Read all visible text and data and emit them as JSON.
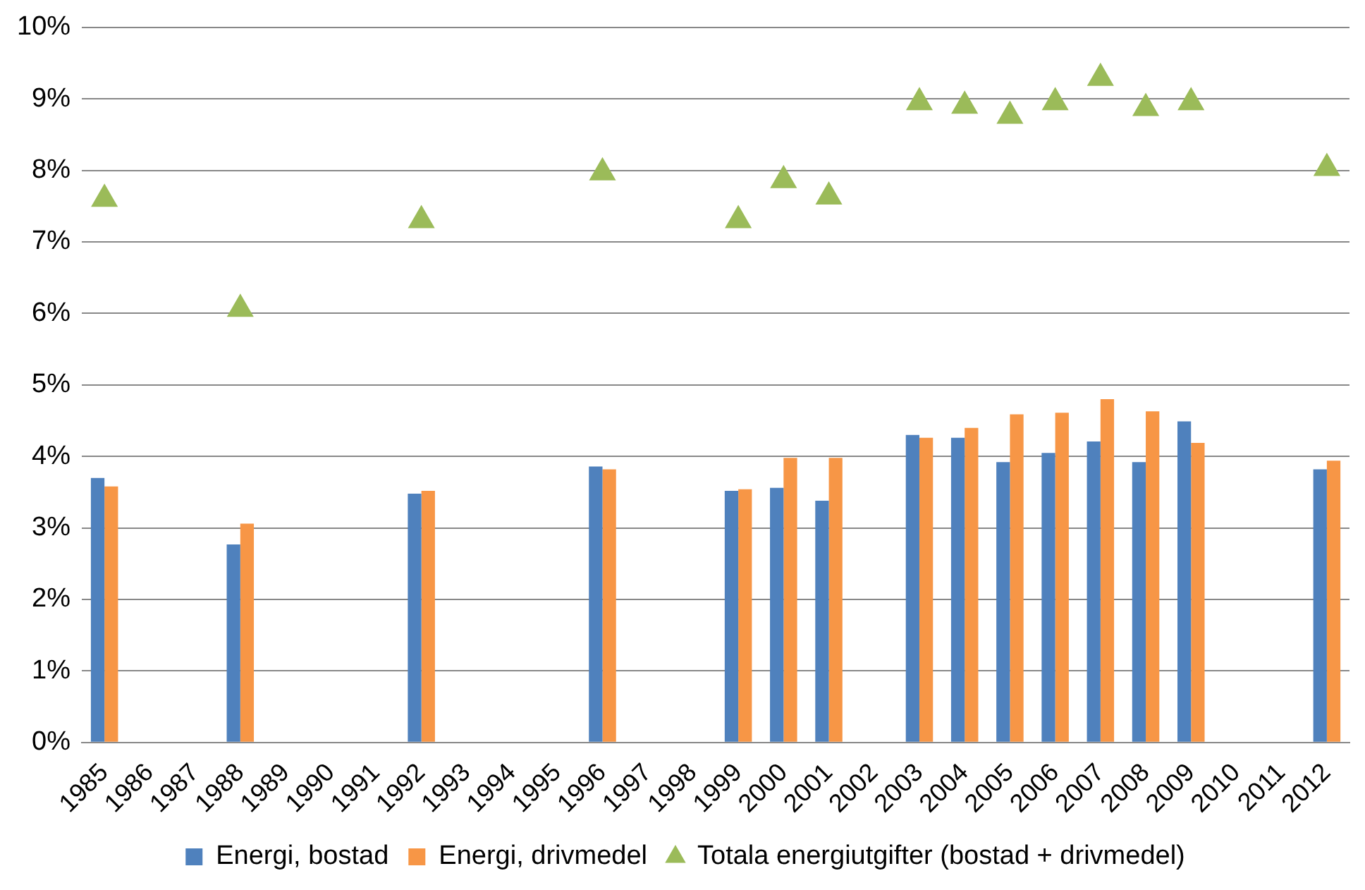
{
  "chart_data": {
    "type": "bar",
    "categories": [
      "1985",
      "1986",
      "1987",
      "1988",
      "1989",
      "1990",
      "1991",
      "1992",
      "1993",
      "1994",
      "1995",
      "1996",
      "1997",
      "1998",
      "1999",
      "2000",
      "2001",
      "2002",
      "2003",
      "2004",
      "2005",
      "2006",
      "2007",
      "2008",
      "2009",
      "2010",
      "2011",
      "2012"
    ],
    "series": [
      {
        "name": "Energi, bostad",
        "color": "#4f81bd",
        "values": [
          3.7,
          null,
          null,
          2.77,
          null,
          null,
          null,
          3.48,
          null,
          null,
          null,
          3.86,
          null,
          null,
          3.52,
          3.56,
          3.38,
          null,
          4.3,
          4.26,
          3.92,
          4.05,
          4.21,
          3.92,
          4.49,
          null,
          null,
          3.82
        ]
      },
      {
        "name": "Energi, drivmedel",
        "color": "#f79646",
        "values": [
          3.58,
          null,
          null,
          3.06,
          null,
          null,
          null,
          3.52,
          null,
          null,
          null,
          3.82,
          null,
          null,
          3.54,
          3.98,
          3.98,
          null,
          4.26,
          4.4,
          4.59,
          4.61,
          4.8,
          4.63,
          4.19,
          null,
          null,
          3.94
        ]
      },
      {
        "name": "Totala energiutgifter (bostad + drivmedel)",
        "color": "#9bbb59",
        "type": "scatter",
        "marker": "triangle",
        "values": [
          7.6,
          null,
          null,
          6.06,
          null,
          null,
          null,
          7.3,
          null,
          null,
          null,
          7.97,
          null,
          null,
          7.3,
          7.86,
          7.63,
          null,
          8.95,
          8.9,
          8.76,
          8.95,
          9.29,
          8.87,
          8.95,
          null,
          null,
          8.03
        ]
      }
    ],
    "ylim": [
      0,
      10
    ],
    "yticks": [
      {
        "value": 0,
        "label": "0%"
      },
      {
        "value": 1,
        "label": "1%"
      },
      {
        "value": 2,
        "label": "2%"
      },
      {
        "value": 3,
        "label": "3%"
      },
      {
        "value": 4,
        "label": "4%"
      },
      {
        "value": 5,
        "label": "5%"
      },
      {
        "value": 6,
        "label": "6%"
      },
      {
        "value": 7,
        "label": "7%"
      },
      {
        "value": 8,
        "label": "8%"
      },
      {
        "value": 9,
        "label": "9%"
      },
      {
        "value": 10,
        "label": "10%"
      }
    ],
    "grid": "y",
    "legend": "bottom"
  }
}
